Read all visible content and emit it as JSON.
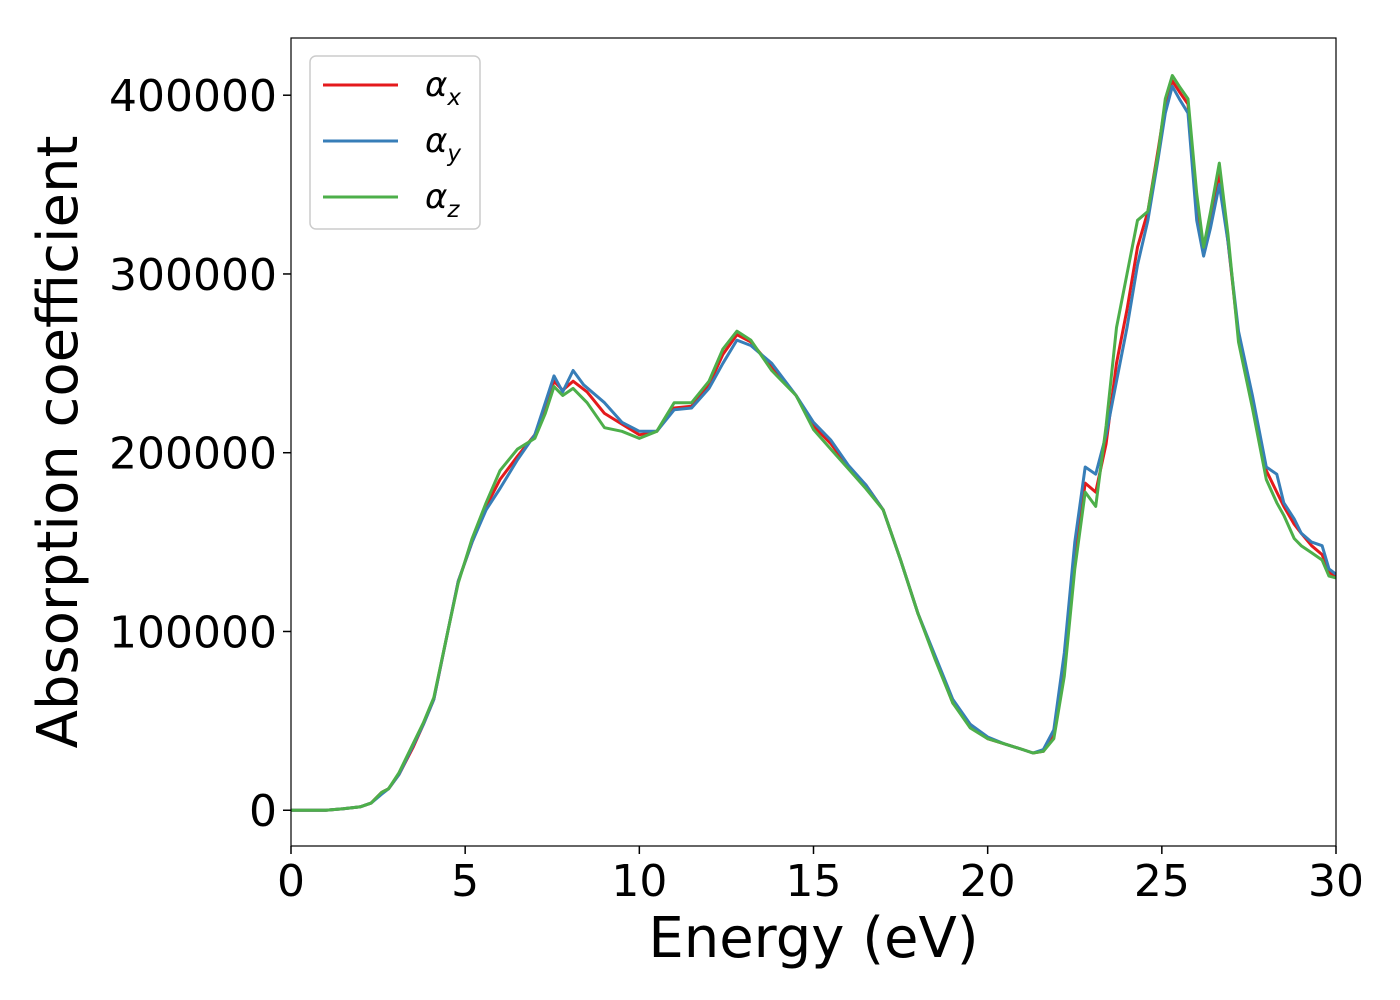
{
  "chart_data": {
    "type": "line",
    "title": "",
    "xlabel": "Energy (eV)",
    "ylabel": "Absorption coefficient",
    "xlim": [
      0,
      30
    ],
    "ylim": [
      -20000,
      432000
    ],
    "xticks": [
      0,
      5,
      10,
      15,
      20,
      25,
      30
    ],
    "xtick_labels": [
      "0",
      "5",
      "10",
      "15",
      "20",
      "25",
      "30"
    ],
    "yticks": [
      0,
      100000,
      200000,
      300000,
      400000
    ],
    "ytick_labels": [
      "0",
      "100000",
      "200000",
      "300000",
      "400000"
    ],
    "grid": false,
    "legend_position": "upper-left",
    "series": [
      {
        "name": "αx",
        "label_main": "α",
        "label_sub": "x",
        "color": "#e41a1c",
        "points": [
          [
            0,
            0
          ],
          [
            1,
            0
          ],
          [
            1.5,
            800
          ],
          [
            2,
            2000
          ],
          [
            2.3,
            4000
          ],
          [
            2.6,
            10000
          ],
          [
            2.8,
            12000
          ],
          [
            3.1,
            20000
          ],
          [
            3.5,
            35000
          ],
          [
            3.8,
            48000
          ],
          [
            4.1,
            62000
          ],
          [
            4.5,
            100000
          ],
          [
            4.8,
            128000
          ],
          [
            5.2,
            150000
          ],
          [
            5.6,
            170000
          ],
          [
            6,
            185000
          ],
          [
            6.5,
            198000
          ],
          [
            7,
            210000
          ],
          [
            7.3,
            225000
          ],
          [
            7.55,
            240000
          ],
          [
            7.8,
            235000
          ],
          [
            8.1,
            240000
          ],
          [
            8.5,
            234000
          ],
          [
            9,
            222000
          ],
          [
            9.5,
            216000
          ],
          [
            10,
            210000
          ],
          [
            10.5,
            212000
          ],
          [
            11,
            225000
          ],
          [
            11.5,
            226000
          ],
          [
            12,
            238000
          ],
          [
            12.4,
            255000
          ],
          [
            12.8,
            266000
          ],
          [
            13.2,
            262000
          ],
          [
            13.8,
            248000
          ],
          [
            14.5,
            232000
          ],
          [
            15,
            215000
          ],
          [
            15.5,
            205000
          ],
          [
            16,
            192000
          ],
          [
            16.5,
            182000
          ],
          [
            17,
            168000
          ],
          [
            17.5,
            140000
          ],
          [
            18,
            110000
          ],
          [
            18.5,
            85000
          ],
          [
            19,
            60000
          ],
          [
            19.5,
            48000
          ],
          [
            20,
            40000
          ],
          [
            20.5,
            37000
          ],
          [
            21,
            34000
          ],
          [
            21.3,
            32000
          ],
          [
            21.6,
            33000
          ],
          [
            21.9,
            42000
          ],
          [
            22.2,
            80000
          ],
          [
            22.5,
            140000
          ],
          [
            22.8,
            183000
          ],
          [
            23.1,
            178000
          ],
          [
            23.4,
            205000
          ],
          [
            23.7,
            250000
          ],
          [
            24,
            280000
          ],
          [
            24.3,
            315000
          ],
          [
            24.6,
            335000
          ],
          [
            24.9,
            370000
          ],
          [
            25.1,
            395000
          ],
          [
            25.3,
            408000
          ],
          [
            25.5,
            402000
          ],
          [
            25.75,
            395000
          ],
          [
            26,
            340000
          ],
          [
            26.2,
            312000
          ],
          [
            26.4,
            330000
          ],
          [
            26.65,
            357000
          ],
          [
            26.9,
            318000
          ],
          [
            27.2,
            265000
          ],
          [
            27.6,
            230000
          ],
          [
            28,
            190000
          ],
          [
            28.3,
            178000
          ],
          [
            28.5,
            170000
          ],
          [
            28.8,
            160000
          ],
          [
            29,
            155000
          ],
          [
            29.3,
            148000
          ],
          [
            29.6,
            143000
          ],
          [
            29.8,
            133000
          ],
          [
            30,
            131000
          ]
        ]
      },
      {
        "name": "αy",
        "label_main": "α",
        "label_sub": "y",
        "color": "#377eb8",
        "points": [
          [
            0,
            0
          ],
          [
            1,
            0
          ],
          [
            1.5,
            800
          ],
          [
            2,
            2000
          ],
          [
            2.3,
            4000
          ],
          [
            2.6,
            9000
          ],
          [
            2.8,
            12000
          ],
          [
            3.1,
            20000
          ],
          [
            3.5,
            36000
          ],
          [
            3.8,
            48000
          ],
          [
            4.1,
            62000
          ],
          [
            4.5,
            100000
          ],
          [
            4.8,
            128000
          ],
          [
            5.2,
            150000
          ],
          [
            5.6,
            168000
          ],
          [
            6,
            180000
          ],
          [
            6.5,
            196000
          ],
          [
            7,
            210000
          ],
          [
            7.3,
            228000
          ],
          [
            7.55,
            243000
          ],
          [
            7.8,
            234000
          ],
          [
            8.1,
            246000
          ],
          [
            8.4,
            238000
          ],
          [
            9,
            228000
          ],
          [
            9.5,
            217000
          ],
          [
            10,
            212000
          ],
          [
            10.5,
            212000
          ],
          [
            11,
            224000
          ],
          [
            11.5,
            225000
          ],
          [
            12,
            236000
          ],
          [
            12.4,
            250000
          ],
          [
            12.8,
            263000
          ],
          [
            13.2,
            260000
          ],
          [
            13.8,
            250000
          ],
          [
            14.5,
            232000
          ],
          [
            15,
            217000
          ],
          [
            15.5,
            207000
          ],
          [
            16,
            193000
          ],
          [
            16.5,
            182000
          ],
          [
            17,
            168000
          ],
          [
            17.5,
            140000
          ],
          [
            18,
            110000
          ],
          [
            18.5,
            86000
          ],
          [
            19,
            62000
          ],
          [
            19.5,
            48000
          ],
          [
            20,
            41000
          ],
          [
            20.5,
            37000
          ],
          [
            21,
            34000
          ],
          [
            21.3,
            32000
          ],
          [
            21.6,
            34000
          ],
          [
            21.9,
            45000
          ],
          [
            22.2,
            88000
          ],
          [
            22.5,
            150000
          ],
          [
            22.8,
            192000
          ],
          [
            23.1,
            188000
          ],
          [
            23.4,
            210000
          ],
          [
            23.7,
            240000
          ],
          [
            24,
            270000
          ],
          [
            24.3,
            305000
          ],
          [
            24.6,
            330000
          ],
          [
            24.9,
            365000
          ],
          [
            25.1,
            390000
          ],
          [
            25.3,
            405000
          ],
          [
            25.5,
            398000
          ],
          [
            25.75,
            390000
          ],
          [
            26,
            330000
          ],
          [
            26.2,
            310000
          ],
          [
            26.4,
            326000
          ],
          [
            26.65,
            350000
          ],
          [
            26.9,
            318000
          ],
          [
            27.2,
            268000
          ],
          [
            27.6,
            232000
          ],
          [
            28,
            192000
          ],
          [
            28.3,
            188000
          ],
          [
            28.5,
            172000
          ],
          [
            28.8,
            163000
          ],
          [
            29,
            155000
          ],
          [
            29.3,
            150000
          ],
          [
            29.6,
            148000
          ],
          [
            29.8,
            135000
          ],
          [
            30,
            132000
          ]
        ]
      },
      {
        "name": "αz",
        "label_main": "α",
        "label_sub": "z",
        "color": "#4daf4a",
        "points": [
          [
            0,
            0
          ],
          [
            1,
            0
          ],
          [
            1.5,
            800
          ],
          [
            2,
            2000
          ],
          [
            2.3,
            4000
          ],
          [
            2.6,
            10000
          ],
          [
            2.8,
            12000
          ],
          [
            3.1,
            21000
          ],
          [
            3.5,
            37000
          ],
          [
            3.8,
            49000
          ],
          [
            4.1,
            63000
          ],
          [
            4.5,
            100000
          ],
          [
            4.8,
            127000
          ],
          [
            5.2,
            152000
          ],
          [
            5.6,
            172000
          ],
          [
            6,
            190000
          ],
          [
            6.5,
            202000
          ],
          [
            7,
            208000
          ],
          [
            7.3,
            222000
          ],
          [
            7.55,
            237000
          ],
          [
            7.8,
            232000
          ],
          [
            8.1,
            236000
          ],
          [
            8.5,
            228000
          ],
          [
            9,
            214000
          ],
          [
            9.5,
            212000
          ],
          [
            10,
            208000
          ],
          [
            10.5,
            212000
          ],
          [
            11,
            228000
          ],
          [
            11.5,
            228000
          ],
          [
            12,
            240000
          ],
          [
            12.4,
            258000
          ],
          [
            12.8,
            268000
          ],
          [
            13.2,
            263000
          ],
          [
            13.8,
            246000
          ],
          [
            14.5,
            232000
          ],
          [
            15,
            213000
          ],
          [
            15.5,
            202000
          ],
          [
            16,
            191000
          ],
          [
            16.5,
            180000
          ],
          [
            17,
            168000
          ],
          [
            17.5,
            140000
          ],
          [
            18,
            110000
          ],
          [
            18.5,
            84000
          ],
          [
            19,
            60000
          ],
          [
            19.5,
            46000
          ],
          [
            20,
            40000
          ],
          [
            20.5,
            37000
          ],
          [
            21,
            34000
          ],
          [
            21.3,
            32000
          ],
          [
            21.6,
            33000
          ],
          [
            21.9,
            40000
          ],
          [
            22.2,
            75000
          ],
          [
            22.5,
            135000
          ],
          [
            22.8,
            178000
          ],
          [
            23.1,
            170000
          ],
          [
            23.4,
            215000
          ],
          [
            23.7,
            270000
          ],
          [
            24,
            300000
          ],
          [
            24.3,
            330000
          ],
          [
            24.6,
            335000
          ],
          [
            24.9,
            368000
          ],
          [
            25.1,
            398000
          ],
          [
            25.3,
            411000
          ],
          [
            25.5,
            405000
          ],
          [
            25.75,
            398000
          ],
          [
            26,
            345000
          ],
          [
            26.2,
            315000
          ],
          [
            26.4,
            335000
          ],
          [
            26.65,
            362000
          ],
          [
            26.9,
            322000
          ],
          [
            27.2,
            262000
          ],
          [
            27.6,
            225000
          ],
          [
            28,
            185000
          ],
          [
            28.3,
            172000
          ],
          [
            28.5,
            165000
          ],
          [
            28.8,
            152000
          ],
          [
            29,
            148000
          ],
          [
            29.3,
            144000
          ],
          [
            29.6,
            140000
          ],
          [
            29.8,
            131000
          ],
          [
            30,
            130000
          ]
        ]
      }
    ]
  }
}
